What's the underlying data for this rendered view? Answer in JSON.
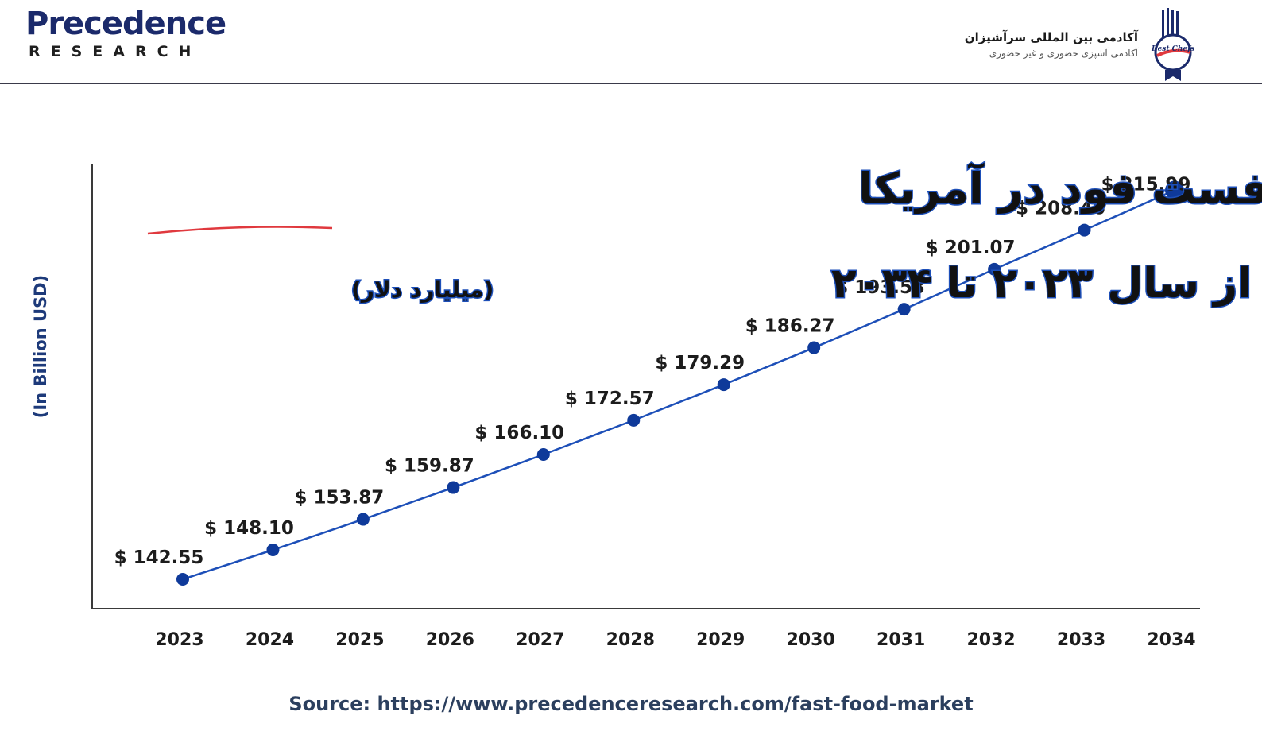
{
  "header": {
    "brand_name": "Precedence",
    "brand_sub": "RESEARCH",
    "academy_name": "آکادمی بین المللی سرآشپزان",
    "academy_tagline": "آکادمی آشپزی حضوری و غیر حضوری",
    "academy_logo_text": "Best Chefs"
  },
  "colors": {
    "line": "#1d4fb8",
    "marker": "#0f3a9a",
    "axis": "#3a3a3a",
    "brand": "#1b2a6b",
    "title_outline": "#1d4fb8",
    "underline": "#e0393e"
  },
  "chart_data": {
    "type": "line",
    "title_line1": "رشد بازار فست فود در آمریکا",
    "title_line2": "از سال ۲۰۲۳ تا ۲۰۳۴",
    "title_unit": "(میلیارد دلار)",
    "ylabel": "(In Billion USD)",
    "xlabel": "",
    "categories": [
      "2023",
      "2024",
      "2025",
      "2026",
      "2027",
      "2028",
      "2029",
      "2030",
      "2031",
      "2032",
      "2033",
      "2034"
    ],
    "values": [
      142.55,
      148.1,
      153.87,
      159.87,
      166.1,
      172.57,
      179.29,
      186.27,
      193.53,
      201.07,
      208.46,
      215.99
    ],
    "value_labels": [
      "$ 142.55",
      "$ 148.10",
      "$ 153.87",
      "$ 159.87",
      "$ 166.10",
      "$ 172.57",
      "$ 179.29",
      "$ 186.27",
      "$ 193.53",
      "$ 201.07",
      "$ 208.46",
      "$ 215.99"
    ],
    "ylim": [
      137,
      221
    ],
    "grid": false,
    "legend": "none",
    "source": "Source: https://www.precedenceresearch.com/fast-food-market"
  }
}
